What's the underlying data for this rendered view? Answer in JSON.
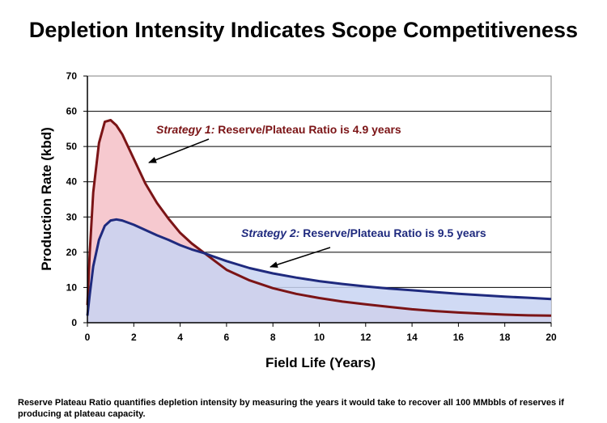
{
  "title": "Depletion Intensity Indicates Scope Competitiveness",
  "footnote": "Reserve Plateau Ratio quantifies depletion intensity by measuring the years it would take to recover all 100 MMbbls of reserves if producing at plateau capacity.",
  "annotations": {
    "strategy1": {
      "prefix": "Strategy 1:",
      "text": " Reserve/Plateau Ratio is 4.9 years"
    },
    "strategy2": {
      "prefix": "Strategy 2:",
      "text": " Reserve/Plateau Ratio is 9.5 years"
    }
  },
  "colors": {
    "strategy1_line": "#7b1416",
    "strategy1_fill": "#f6c9cf",
    "strategy2_line": "#1f2a7e",
    "strategy2_fill": "#c8d3f2",
    "overlap_fill": "#cbc7ec"
  },
  "chart_data": {
    "type": "area",
    "title": "Depletion Intensity Indicates Scope Competitiveness",
    "xlabel": "Field Life (Years)",
    "ylabel": "Production Rate (kbd)",
    "xlim": [
      0,
      20
    ],
    "ylim": [
      0,
      70
    ],
    "xticks": [
      0,
      2,
      4,
      6,
      8,
      10,
      12,
      14,
      16,
      18,
      20
    ],
    "yticks": [
      0,
      10,
      20,
      30,
      40,
      50,
      60,
      70
    ],
    "grid": "horizontal",
    "series": [
      {
        "name": "Strategy 1",
        "x": [
          0,
          0.1,
          0.25,
          0.5,
          0.75,
          1.0,
          1.25,
          1.5,
          2,
          2.5,
          3,
          3.5,
          4,
          4.5,
          5,
          5.5,
          6,
          7,
          8,
          9,
          10,
          11,
          12,
          13,
          14,
          15,
          16,
          17,
          18,
          19,
          20
        ],
        "values": [
          5,
          20,
          37,
          51,
          57,
          57.5,
          56,
          53.5,
          46.5,
          39.5,
          34,
          29.5,
          25.5,
          22.5,
          20,
          17.5,
          15,
          12,
          9.8,
          8.2,
          7,
          6,
          5.2,
          4.5,
          3.8,
          3.3,
          2.9,
          2.6,
          2.3,
          2.1,
          2
        ]
      },
      {
        "name": "Strategy 2",
        "x": [
          0,
          0.1,
          0.25,
          0.5,
          0.75,
          1.0,
          1.25,
          1.5,
          2,
          2.5,
          3,
          3.5,
          4,
          4.5,
          5,
          6,
          7,
          8,
          9,
          10,
          11,
          12,
          13,
          14,
          15,
          16,
          17,
          18,
          19,
          20
        ],
        "values": [
          2,
          8,
          16,
          23.5,
          27.5,
          29,
          29.3,
          29,
          27.8,
          26.3,
          24.8,
          23.5,
          22,
          20.8,
          19.8,
          17.5,
          15.5,
          14,
          12.8,
          11.8,
          11,
          10.3,
          9.7,
          9.2,
          8.7,
          8.2,
          7.8,
          7.4,
          7.1,
          6.7
        ]
      }
    ]
  }
}
